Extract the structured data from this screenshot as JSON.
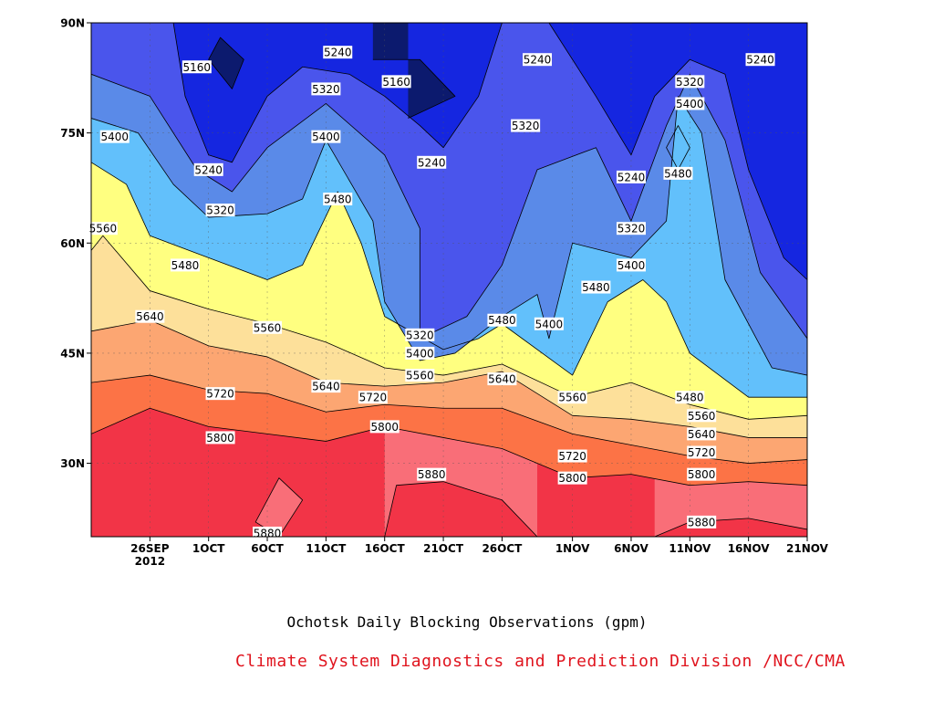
{
  "chart_data": {
    "type": "contour",
    "title": "Ochotsk Daily Blocking Observations (gpm)",
    "credit": "Climate System Diagnostics and Prediction Division /NCC/CMA",
    "x_ticks": [
      {
        "date": "2012-09-26",
        "label": "26SEP",
        "sublabel": "2012"
      },
      {
        "date": "2012-10-01",
        "label": "1OCT"
      },
      {
        "date": "2012-10-06",
        "label": "6OCT"
      },
      {
        "date": "2012-10-11",
        "label": "11OCT"
      },
      {
        "date": "2012-10-16",
        "label": "16OCT"
      },
      {
        "date": "2012-10-21",
        "label": "21OCT"
      },
      {
        "date": "2012-10-26",
        "label": "26OCT"
      },
      {
        "date": "2012-11-01",
        "label": "1NOV"
      },
      {
        "date": "2012-11-06",
        "label": "6NOV"
      },
      {
        "date": "2012-11-11",
        "label": "11NOV"
      },
      {
        "date": "2012-11-16",
        "label": "16NOV"
      },
      {
        "date": "2012-11-21",
        "label": "21NOV"
      }
    ],
    "y_ticks": [
      {
        "value": 30,
        "label": "30N"
      },
      {
        "value": 45,
        "label": "45N"
      },
      {
        "value": 60,
        "label": "60N"
      },
      {
        "value": 75,
        "label": "75N"
      },
      {
        "value": 90,
        "label": "90N"
      }
    ],
    "xlim": [
      "2012-09-21",
      "2012-11-21"
    ],
    "ylim": [
      20,
      90
    ],
    "grid": true,
    "levels": [
      5160,
      5240,
      5320,
      5400,
      5480,
      5560,
      5640,
      5720,
      5800,
      5880
    ],
    "fill_colors": [
      "#0c1a6e",
      "#1526e0",
      "#4a55ec",
      "#5a8ae8",
      "#62c0fb",
      "#ffff80",
      "#fde09a",
      "#fca672",
      "#fc7346",
      "#f96e78",
      "#f23447"
    ],
    "contour_lines": [
      {
        "level": 5880,
        "points": [
          [
            "2012-10-07",
            20.0
          ],
          [
            "2012-10-09",
            25.0
          ],
          [
            "2012-10-07",
            28.0
          ],
          [
            "2012-10-05",
            22.0
          ]
        ]
      },
      {
        "level": 5880,
        "points": [
          [
            "2012-10-16",
            20.0
          ],
          [
            "2012-10-17",
            27.0
          ],
          [
            "2012-10-21",
            27.5
          ],
          [
            "2012-10-26",
            25.0
          ],
          [
            "2012-10-29",
            20.0
          ]
        ]
      },
      {
        "level": 5880,
        "points": [
          [
            "2012-11-08",
            20.0
          ],
          [
            "2012-11-11",
            22.0
          ],
          [
            "2012-11-16",
            22.5
          ],
          [
            "2012-11-21",
            21.0
          ]
        ]
      },
      {
        "level": 5800,
        "points": [
          [
            "2012-09-21",
            34.0
          ],
          [
            "2012-09-26",
            37.5
          ],
          [
            "2012-10-01",
            35.0
          ],
          [
            "2012-10-06",
            34.0
          ],
          [
            "2012-10-11",
            33.0
          ],
          [
            "2012-10-16",
            35.0
          ],
          [
            "2012-10-21",
            33.5
          ],
          [
            "2012-10-26",
            32.0
          ],
          [
            "2012-11-01",
            28.0
          ],
          [
            "2012-11-06",
            28.5
          ],
          [
            "2012-11-11",
            27.0
          ],
          [
            "2012-11-16",
            27.5
          ],
          [
            "2012-11-21",
            27.0
          ]
        ]
      },
      {
        "level": 5720,
        "points": [
          [
            "2012-09-21",
            41.0
          ],
          [
            "2012-09-26",
            42.0
          ],
          [
            "2012-10-01",
            40.0
          ],
          [
            "2012-10-06",
            39.5
          ],
          [
            "2012-10-11",
            37.0
          ],
          [
            "2012-10-16",
            38.0
          ],
          [
            "2012-10-21",
            37.5
          ],
          [
            "2012-10-26",
            37.5
          ],
          [
            "2012-11-01",
            34.0
          ],
          [
            "2012-11-06",
            32.5
          ],
          [
            "2012-11-11",
            31.0
          ],
          [
            "2012-11-16",
            30.0
          ],
          [
            "2012-11-21",
            30.5
          ]
        ]
      },
      {
        "level": 5640,
        "points": [
          [
            "2012-09-21",
            48.0
          ],
          [
            "2012-09-26",
            49.5
          ],
          [
            "2012-10-01",
            46.0
          ],
          [
            "2012-10-06",
            44.5
          ],
          [
            "2012-10-11",
            41.0
          ],
          [
            "2012-10-16",
            40.5
          ],
          [
            "2012-10-21",
            41.0
          ],
          [
            "2012-10-26",
            42.5
          ],
          [
            "2012-11-01",
            36.5
          ],
          [
            "2012-11-06",
            36.0
          ],
          [
            "2012-11-11",
            35.0
          ],
          [
            "2012-11-16",
            33.5
          ],
          [
            "2012-11-21",
            33.5
          ]
        ]
      },
      {
        "level": 5560,
        "points": [
          [
            "2012-09-21",
            59.0
          ],
          [
            "2012-09-22",
            61.0
          ],
          [
            "2012-09-26",
            53.5
          ],
          [
            "2012-10-01",
            51.0
          ],
          [
            "2012-10-06",
            49.0
          ],
          [
            "2012-10-11",
            46.5
          ],
          [
            "2012-10-16",
            43.0
          ],
          [
            "2012-10-21",
            42.0
          ],
          [
            "2012-10-26",
            43.5
          ],
          [
            "2012-11-01",
            39.0
          ],
          [
            "2012-11-06",
            41.0
          ],
          [
            "2012-11-11",
            38.0
          ],
          [
            "2012-11-16",
            36.0
          ],
          [
            "2012-11-21",
            36.5
          ]
        ]
      },
      {
        "level": 5480,
        "points": [
          [
            "2012-09-21",
            71.0
          ],
          [
            "2012-09-24",
            68.0
          ],
          [
            "2012-09-26",
            61.0
          ],
          [
            "2012-10-01",
            58.0
          ],
          [
            "2012-10-06",
            55.0
          ],
          [
            "2012-10-09",
            57.0
          ],
          [
            "2012-10-12",
            67.0
          ],
          [
            "2012-10-14",
            60.0
          ],
          [
            "2012-10-16",
            50.0
          ],
          [
            "2012-10-21",
            45.5
          ],
          [
            "2012-10-24",
            47.0
          ],
          [
            "2012-10-26",
            49.0
          ],
          [
            "2012-11-01",
            42.0
          ],
          [
            "2012-11-04",
            52.0
          ],
          [
            "2012-11-07",
            55.0
          ],
          [
            "2012-11-09",
            52.0
          ],
          [
            "2012-11-11",
            45.0
          ],
          [
            "2012-11-16",
            39.0
          ],
          [
            "2012-11-21",
            39.0
          ]
        ]
      },
      {
        "level": 5480,
        "points": [
          [
            "2012-11-09",
            73.0
          ],
          [
            "2012-11-10",
            76.0
          ],
          [
            "2012-11-11",
            73.0
          ],
          [
            "2012-11-10",
            70.0
          ]
        ]
      },
      {
        "level": 5400,
        "points": [
          [
            "2012-09-21",
            77.0
          ],
          [
            "2012-09-25",
            75.0
          ],
          [
            "2012-09-28",
            68.0
          ],
          [
            "2012-10-01",
            63.5
          ],
          [
            "2012-10-06",
            64.0
          ],
          [
            "2012-10-09",
            66.0
          ],
          [
            "2012-10-11",
            74.0
          ],
          [
            "2012-10-15",
            63.0
          ],
          [
            "2012-10-16",
            52.0
          ],
          [
            "2012-10-19",
            44.0
          ],
          [
            "2012-10-22",
            45.0
          ],
          [
            "2012-10-26",
            50.0
          ],
          [
            "2012-10-29",
            53.0
          ],
          [
            "2012-10-30",
            47.0
          ],
          [
            "2012-11-01",
            60.0
          ],
          [
            "2012-11-06",
            58.0
          ],
          [
            "2012-11-09",
            63.0
          ],
          [
            "2012-11-10",
            80.0
          ],
          [
            "2012-11-12",
            75.0
          ],
          [
            "2012-11-14",
            55.0
          ],
          [
            "2012-11-18",
            43.0
          ],
          [
            "2012-11-21",
            42.0
          ]
        ]
      },
      {
        "level": 5320,
        "points": [
          [
            "2012-09-21",
            83.0
          ],
          [
            "2012-09-26",
            80.0
          ],
          [
            "2012-09-30",
            70.0
          ],
          [
            "2012-10-03",
            67.0
          ],
          [
            "2012-10-06",
            73.0
          ],
          [
            "2012-10-11",
            79.0
          ],
          [
            "2012-10-16",
            72.0
          ],
          [
            "2012-10-19",
            62.0
          ],
          [
            "2012-10-19",
            47.0
          ],
          [
            "2012-10-23",
            50.0
          ],
          [
            "2012-10-26",
            57.0
          ],
          [
            "2012-10-29",
            70.0
          ],
          [
            "2012-11-03",
            73.0
          ],
          [
            "2012-11-06",
            63.0
          ],
          [
            "2012-11-09",
            76.0
          ],
          [
            "2012-11-11",
            83.0
          ],
          [
            "2012-11-14",
            74.0
          ],
          [
            "2012-11-17",
            56.0
          ],
          [
            "2012-11-21",
            47.0
          ]
        ]
      },
      {
        "level": 5240,
        "points": [
          [
            "2012-09-28",
            90.0
          ],
          [
            "2012-09-29",
            80.0
          ],
          [
            "2012-10-01",
            72.0
          ],
          [
            "2012-10-03",
            71.0
          ],
          [
            "2012-10-06",
            80.0
          ],
          [
            "2012-10-09",
            84.0
          ],
          [
            "2012-10-13",
            83.0
          ],
          [
            "2012-10-16",
            80.0
          ],
          [
            "2012-10-19",
            76.0
          ],
          [
            "2012-10-21",
            73.0
          ],
          [
            "2012-10-24",
            80.0
          ],
          [
            "2012-10-26",
            90.0
          ]
        ]
      },
      {
        "level": 5240,
        "points": [
          [
            "2012-10-30",
            90.0
          ],
          [
            "2012-11-03",
            80.0
          ],
          [
            "2012-11-06",
            72.0
          ],
          [
            "2012-11-08",
            80.0
          ],
          [
            "2012-11-11",
            85.0
          ],
          [
            "2012-11-14",
            83.0
          ],
          [
            "2012-11-16",
            70.0
          ],
          [
            "2012-11-19",
            58.0
          ],
          [
            "2012-11-21",
            55.0
          ]
        ]
      },
      {
        "level": 5160,
        "points": [
          [
            "2012-10-01",
            85.0
          ],
          [
            "2012-10-02",
            88.0
          ],
          [
            "2012-10-04",
            85.0
          ],
          [
            "2012-10-03",
            81.0
          ]
        ]
      },
      {
        "level": 5160,
        "points": [
          [
            "2012-10-15",
            85.0
          ],
          [
            "2012-10-19",
            85.0
          ],
          [
            "2012-10-22",
            80.0
          ],
          [
            "2012-10-18",
            77.0
          ]
        ]
      }
    ],
    "contour_labels": [
      {
        "date": "2012-09-30",
        "lat": 84.0,
        "text": "5160"
      },
      {
        "date": "2012-10-12",
        "lat": 86.0,
        "text": "5240"
      },
      {
        "date": "2012-10-11",
        "lat": 81.0,
        "text": "5320"
      },
      {
        "date": "2012-10-17",
        "lat": 82.0,
        "text": "5160"
      },
      {
        "date": "2012-10-29",
        "lat": 85.0,
        "text": "5240"
      },
      {
        "date": "2012-11-11",
        "lat": 82.0,
        "text": "5320"
      },
      {
        "date": "2012-11-11",
        "lat": 79.0,
        "text": "5400"
      },
      {
        "date": "2012-11-17",
        "lat": 85.0,
        "text": "5240"
      },
      {
        "date": "2012-09-23",
        "lat": 74.5,
        "text": "5400"
      },
      {
        "date": "2012-10-11",
        "lat": 74.5,
        "text": "5400"
      },
      {
        "date": "2012-10-28",
        "lat": 76.0,
        "text": "5320"
      },
      {
        "date": "2012-10-01",
        "lat": 70.0,
        "text": "5240"
      },
      {
        "date": "2012-10-20",
        "lat": 71.0,
        "text": "5240"
      },
      {
        "date": "2012-11-06",
        "lat": 69.0,
        "text": "5240"
      },
      {
        "date": "2012-11-10",
        "lat": 69.5,
        "text": "5480"
      },
      {
        "date": "2012-10-12",
        "lat": 66.0,
        "text": "5480"
      },
      {
        "date": "2012-10-02",
        "lat": 64.5,
        "text": "5320"
      },
      {
        "date": "2012-09-22",
        "lat": 62.0,
        "text": "5560"
      },
      {
        "date": "2012-11-06",
        "lat": 62.0,
        "text": "5320"
      },
      {
        "date": "2012-09-29",
        "lat": 57.0,
        "text": "5480"
      },
      {
        "date": "2012-11-06",
        "lat": 57.0,
        "text": "5400"
      },
      {
        "date": "2012-11-03",
        "lat": 54.0,
        "text": "5480"
      },
      {
        "date": "2012-09-26",
        "lat": 50.0,
        "text": "5640"
      },
      {
        "date": "2012-10-06",
        "lat": 48.5,
        "text": "5560"
      },
      {
        "date": "2012-10-26",
        "lat": 49.5,
        "text": "5480"
      },
      {
        "date": "2012-10-30",
        "lat": 49.0,
        "text": "5400"
      },
      {
        "date": "2012-10-19",
        "lat": 47.5,
        "text": "5320"
      },
      {
        "date": "2012-10-19",
        "lat": 45.0,
        "text": "5400"
      },
      {
        "date": "2012-10-19",
        "lat": 42.0,
        "text": "5560"
      },
      {
        "date": "2012-10-26",
        "lat": 41.5,
        "text": "5640"
      },
      {
        "date": "2012-10-11",
        "lat": 40.5,
        "text": "5640"
      },
      {
        "date": "2012-10-02",
        "lat": 39.5,
        "text": "5720"
      },
      {
        "date": "2012-10-15",
        "lat": 39.0,
        "text": "5720"
      },
      {
        "date": "2012-11-01",
        "lat": 39.0,
        "text": "5560"
      },
      {
        "date": "2012-11-11",
        "lat": 39.0,
        "text": "5480"
      },
      {
        "date": "2012-11-12",
        "lat": 36.5,
        "text": "5560"
      },
      {
        "date": "2012-11-12",
        "lat": 34.0,
        "text": "5640"
      },
      {
        "date": "2012-10-16",
        "lat": 35.0,
        "text": "5800"
      },
      {
        "date": "2012-10-02",
        "lat": 33.5,
        "text": "5800"
      },
      {
        "date": "2012-11-01",
        "lat": 31.0,
        "text": "5720"
      },
      {
        "date": "2012-11-12",
        "lat": 31.5,
        "text": "5720"
      },
      {
        "date": "2012-11-12",
        "lat": 28.5,
        "text": "5800"
      },
      {
        "date": "2012-11-01",
        "lat": 28.0,
        "text": "5800"
      },
      {
        "date": "2012-10-20",
        "lat": 28.5,
        "text": "5880"
      },
      {
        "date": "2012-11-12",
        "lat": 22.0,
        "text": "5880"
      },
      {
        "date": "2012-10-06",
        "lat": 20.5,
        "text": "5880"
      }
    ]
  }
}
